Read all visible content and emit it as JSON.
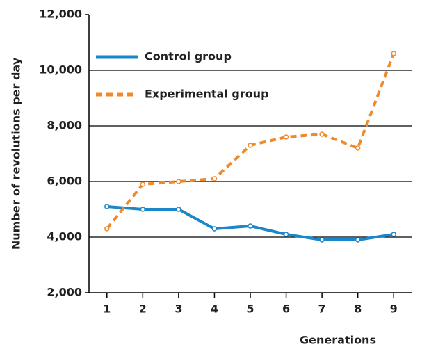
{
  "chart_data": {
    "type": "line",
    "x_label": "Generations",
    "y_label": "Number of revolutions per day",
    "categories": [
      "1",
      "2",
      "3",
      "4",
      "5",
      "6",
      "7",
      "8",
      "9"
    ],
    "series": [
      {
        "name": "Control group",
        "color": "#1a87c9",
        "dash": false,
        "values": [
          5100,
          5000,
          5000,
          4300,
          4400,
          4100,
          3900,
          3900,
          4100
        ]
      },
      {
        "name": "Experimental group",
        "color": "#f0892a",
        "dash": true,
        "values": [
          4300,
          5900,
          6000,
          6100,
          7300,
          7600,
          7700,
          7200,
          10600
        ]
      }
    ],
    "ylim": [
      2000,
      12000
    ],
    "yticks": [
      {
        "value": 2000,
        "label": "2,000"
      },
      {
        "value": 4000,
        "label": "4,000"
      },
      {
        "value": 6000,
        "label": "6,000"
      },
      {
        "value": 8000,
        "label": "8,000"
      },
      {
        "value": 10000,
        "label": "10,000"
      },
      {
        "value": 12000,
        "label": "12,000"
      }
    ],
    "grid": true,
    "legend": "upper left"
  }
}
